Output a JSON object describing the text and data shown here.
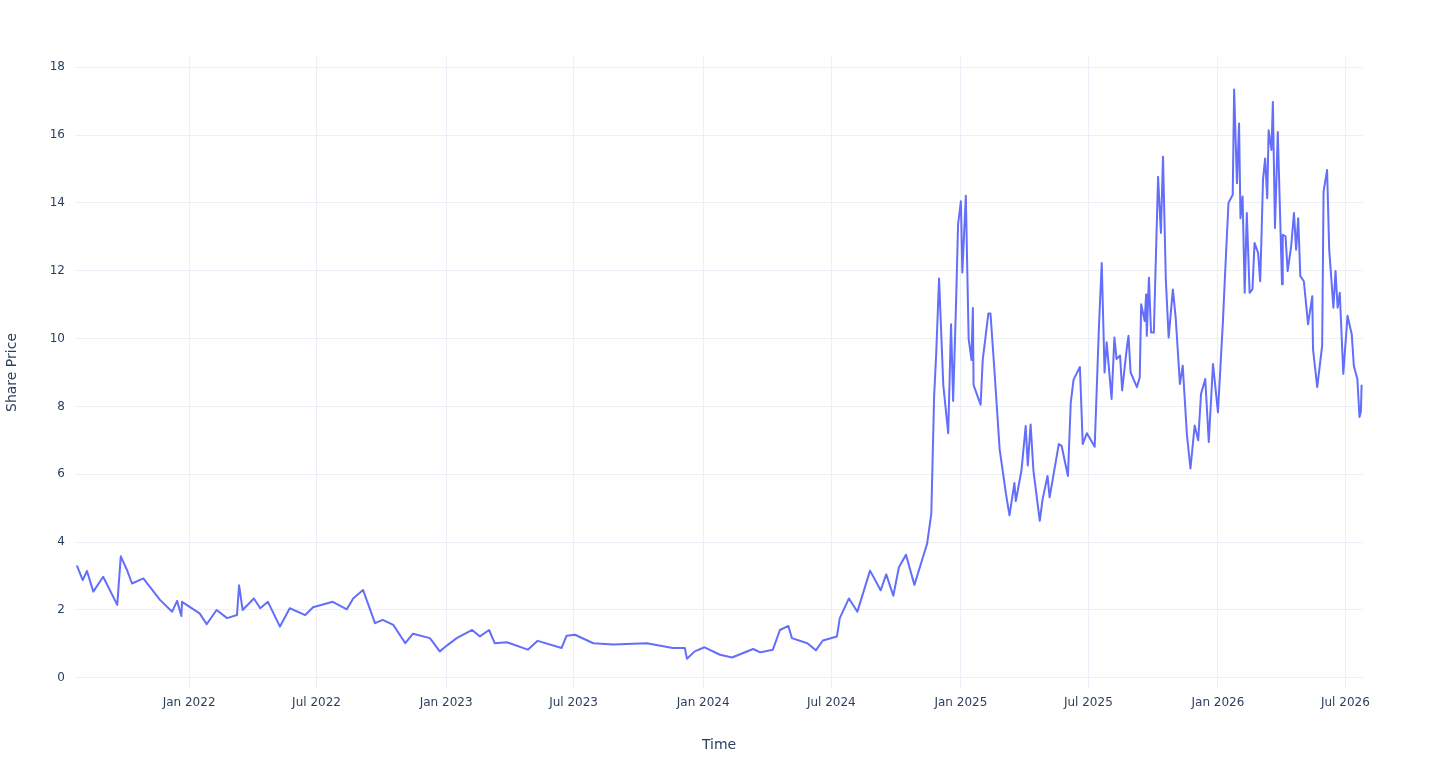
{
  "chart_data": {
    "type": "line",
    "xlabel": "Time",
    "ylabel": "Share Price",
    "grid": true,
    "legend": false,
    "marker": "none",
    "line_style": "solid",
    "xlim": [
      "2021-07-23",
      "2026-07-26"
    ],
    "xticks": [
      {
        "value": "2022-01-01",
        "label": "Jan 2022"
      },
      {
        "value": "2022-07-01",
        "label": "Jul 2022"
      },
      {
        "value": "2023-01-01",
        "label": "Jan 2023"
      },
      {
        "value": "2023-07-01",
        "label": "Jul 2023"
      },
      {
        "value": "2024-01-01",
        "label": "Jan 2024"
      },
      {
        "value": "2024-07-01",
        "label": "Jul 2024"
      },
      {
        "value": "2025-01-01",
        "label": "Jan 2025"
      },
      {
        "value": "2025-07-01",
        "label": "Jul 2025"
      },
      {
        "value": "2026-01-01",
        "label": "Jan 2026"
      },
      {
        "value": "2026-07-01",
        "label": "Jul 2026"
      }
    ],
    "ylim": [
      -0.3,
      18.3
    ],
    "yticks": [
      0,
      2,
      4,
      6,
      8,
      10,
      12,
      14,
      16,
      18
    ],
    "series": [
      {
        "color": "#636efa",
        "x": [
          "2021-07-26",
          "2021-08-03",
          "2021-08-09",
          "2021-08-18",
          "2021-09-01",
          "2021-09-21",
          "2021-09-26",
          "2021-10-05",
          "2021-10-12",
          "2021-10-28",
          "2021-11-21",
          "2021-12-08",
          "2021-12-15",
          "2021-12-21",
          "2021-12-22",
          "2022-01-16",
          "2022-01-26",
          "2022-02-09",
          "2022-02-24",
          "2022-03-10",
          "2022-03-13",
          "2022-03-18",
          "2022-04-03",
          "2022-04-12",
          "2022-04-23",
          "2022-05-10",
          "2022-05-24",
          "2022-06-15",
          "2022-06-26",
          "2022-07-24",
          "2022-08-13",
          "2022-08-22",
          "2022-09-05",
          "2022-09-22",
          "2022-10-03",
          "2022-10-18",
          "2022-11-04",
          "2022-11-15",
          "2022-12-09",
          "2022-12-23",
          "2023-01-02",
          "2023-01-16",
          "2023-02-07",
          "2023-02-18",
          "2023-03-03",
          "2023-03-11",
          "2023-03-28",
          "2023-04-27",
          "2023-05-11",
          "2023-06-14",
          "2023-06-21",
          "2023-07-03",
          "2023-07-29",
          "2023-08-26",
          "2023-10-13",
          "2023-11-19",
          "2023-12-06",
          "2023-12-09",
          "2023-12-20",
          "2024-01-03",
          "2024-01-25",
          "2024-02-11",
          "2024-03-12",
          "2024-03-22",
          "2024-04-09",
          "2024-04-19",
          "2024-05-01",
          "2024-05-06",
          "2024-05-28",
          "2024-06-09",
          "2024-06-19",
          "2024-07-09",
          "2024-07-13",
          "2024-07-26",
          "2024-08-07",
          "2024-08-25",
          "2024-09-09",
          "2024-09-17",
          "2024-09-27",
          "2024-10-05",
          "2024-10-15",
          "2024-10-27",
          "2024-11-14",
          "2024-11-20",
          "2024-11-24",
          "2024-11-27",
          "2024-12-01",
          "2024-12-07",
          "2024-12-14",
          "2024-12-18",
          "2024-12-21",
          "2024-12-25",
          "2024-12-28",
          "2025-01-01",
          "2025-01-03",
          "2025-01-08",
          "2025-01-12",
          "2025-01-16",
          "2025-01-18",
          "2025-01-19",
          "2025-01-29",
          "2025-02-01",
          "2025-02-05",
          "2025-02-09",
          "2025-02-12",
          "2025-02-18",
          "2025-02-25",
          "2025-03-06",
          "2025-03-11",
          "2025-03-18",
          "2025-03-20",
          "2025-03-28",
          "2025-04-03",
          "2025-04-06",
          "2025-04-10",
          "2025-04-14",
          "2025-04-23",
          "2025-04-27",
          "2025-05-04",
          "2025-05-07",
          "2025-05-20",
          "2025-05-24",
          "2025-06-02",
          "2025-06-06",
          "2025-06-10",
          "2025-06-19",
          "2025-06-23",
          "2025-06-29",
          "2025-07-10",
          "2025-07-16",
          "2025-07-20",
          "2025-07-24",
          "2025-07-27",
          "2025-08-03",
          "2025-08-07",
          "2025-08-10",
          "2025-08-15",
          "2025-08-18",
          "2025-08-25",
          "2025-08-27",
          "2025-08-30",
          "2025-09-08",
          "2025-09-12",
          "2025-09-14",
          "2025-09-19",
          "2025-09-21",
          "2025-09-22",
          "2025-09-25",
          "2025-09-28",
          "2025-10-02",
          "2025-10-08",
          "2025-10-12",
          "2025-10-15",
          "2025-10-19",
          "2025-10-23",
          "2025-10-29",
          "2025-11-02",
          "2025-11-08",
          "2025-11-12",
          "2025-11-18",
          "2025-11-23",
          "2025-11-29",
          "2025-12-04",
          "2025-12-08",
          "2025-12-14",
          "2025-12-19",
          "2025-12-25",
          "2026-01-01",
          "2026-01-08",
          "2026-01-11",
          "2026-01-16",
          "2026-01-22",
          "2026-01-24",
          "2026-01-28",
          "2026-01-31",
          "2026-02-02",
          "2026-02-05",
          "2026-02-08",
          "2026-02-11",
          "2026-02-15",
          "2026-02-19",
          "2026-02-22",
          "2026-02-27",
          "2026-03-02",
          "2026-03-04",
          "2026-03-06",
          "2026-03-09",
          "2026-03-12",
          "2026-03-14",
          "2026-03-18",
          "2026-03-20",
          "2026-03-23",
          "2026-03-27",
          "2026-04-02",
          "2026-04-03",
          "2026-04-07",
          "2026-04-10",
          "2026-04-15",
          "2026-04-19",
          "2026-04-22",
          "2026-04-25",
          "2026-04-28",
          "2026-05-03",
          "2026-05-09",
          "2026-05-15",
          "2026-05-16",
          "2026-05-22",
          "2026-05-29",
          "2026-05-31",
          "2026-06-05",
          "2026-06-08",
          "2026-06-14",
          "2026-06-17",
          "2026-06-20",
          "2026-06-23",
          "2026-06-28",
          "2026-07-04",
          "2026-07-10",
          "2026-07-13",
          "2026-07-18",
          "2026-07-21",
          "2026-07-23",
          "2026-07-24"
        ],
        "values": [
          3.29,
          2.88,
          3.15,
          2.54,
          2.98,
          2.15,
          3.58,
          3.17,
          2.78,
          2.93,
          2.29,
          1.95,
          2.27,
          1.82,
          2.24,
          1.9,
          1.58,
          2.0,
          1.76,
          1.85,
          2.73,
          2.0,
          2.34,
          2.05,
          2.24,
          1.51,
          2.05,
          1.85,
          2.08,
          2.24,
          2.02,
          2.34,
          2.59,
          1.61,
          1.71,
          1.56,
          1.02,
          1.3,
          1.17,
          0.78,
          0.95,
          1.17,
          1.41,
          1.22,
          1.41,
          1.02,
          1.05,
          0.83,
          1.09,
          0.88,
          1.24,
          1.27,
          1.02,
          0.98,
          1.02,
          0.88,
          0.88,
          0.56,
          0.78,
          0.9,
          0.68,
          0.6,
          0.85,
          0.75,
          0.83,
          1.41,
          1.53,
          1.17,
          1.02,
          0.81,
          1.1,
          1.22,
          1.76,
          2.34,
          1.95,
          3.16,
          2.58,
          3.05,
          2.42,
          3.26,
          3.63,
          2.74,
          3.95,
          4.84,
          8.3,
          9.58,
          11.77,
          8.63,
          7.21,
          10.42,
          8.16,
          10.95,
          13.37,
          14.05,
          11.95,
          14.21,
          10.0,
          9.37,
          10.9,
          8.63,
          8.05,
          9.37,
          10.05,
          10.74,
          10.74,
          8.95,
          6.74,
          5.42,
          4.79,
          5.74,
          5.21,
          6.11,
          7.42,
          6.26,
          7.47,
          6.11,
          4.63,
          5.26,
          5.95,
          5.32,
          6.89,
          6.84,
          5.95,
          8.11,
          8.79,
          9.16,
          6.89,
          7.21,
          6.81,
          10.33,
          12.23,
          9.0,
          9.89,
          8.22,
          10.03,
          9.4,
          9.5,
          8.47,
          9.79,
          10.08,
          9.0,
          8.57,
          8.86,
          11.01,
          10.52,
          11.3,
          10.08,
          11.79,
          10.18,
          10.18,
          14.77,
          13.11,
          15.36,
          11.74,
          10.03,
          11.45,
          10.62,
          8.66,
          9.2,
          7.15,
          6.17,
          7.44,
          7.0,
          8.37,
          8.81,
          6.95,
          9.25,
          7.83,
          10.47,
          11.84,
          14.0,
          14.24,
          17.34,
          14.58,
          16.34,
          13.55,
          14.19,
          11.35,
          13.7,
          11.35,
          11.45,
          12.82,
          12.53,
          11.69,
          13.11,
          14.68,
          15.31,
          14.14,
          16.14,
          15.56,
          16.97,
          13.26,
          16.09,
          11.6,
          13.06,
          13.01,
          11.99,
          12.72,
          13.7,
          12.62,
          13.55,
          11.84,
          11.69,
          10.42,
          11.25,
          9.69,
          8.57,
          9.79,
          14.33,
          14.97,
          12.62,
          10.91,
          11.99,
          10.91,
          11.35,
          8.96,
          10.67,
          10.13,
          9.2,
          8.81,
          7.69,
          7.84,
          8.62
        ]
      }
    ]
  }
}
